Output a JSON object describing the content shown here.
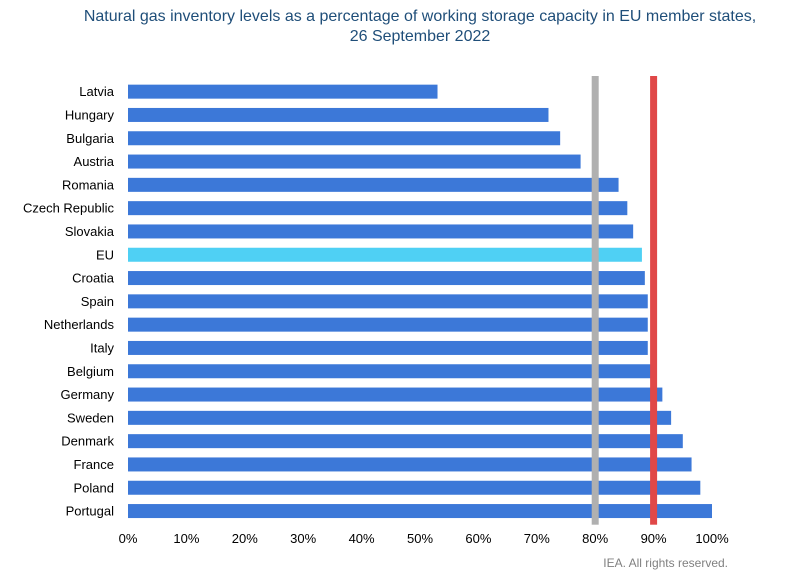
{
  "chart_data": {
    "type": "bar",
    "orientation": "horizontal",
    "title_lines": [
      "Natural gas inventory levels as a percentage of working storage capacity in EU member states,",
      "26 September 2022"
    ],
    "categories": [
      "Latvia",
      "Hungary",
      "Bulgaria",
      "Austria",
      "Romania",
      "Czech Republic",
      "Slovakia",
      "EU",
      "Croatia",
      "Spain",
      "Netherlands",
      "Italy",
      "Belgium",
      "Germany",
      "Sweden",
      "Denmark",
      "France",
      "Poland",
      "Portugal"
    ],
    "values": [
      53,
      72,
      74,
      77.5,
      84,
      85.5,
      86.5,
      88,
      88.5,
      89,
      89,
      89,
      90.5,
      91.5,
      93,
      95,
      96.5,
      98,
      100
    ],
    "highlight_category": "EU",
    "colors": {
      "bar": "#3c78d8",
      "highlight": "#4fd0f4",
      "ref80": "#b0b0b0",
      "ref90": "#e04848"
    },
    "reference_lines": [
      {
        "value": 80,
        "color": "#b0b0b0"
      },
      {
        "value": 90,
        "color": "#e04848"
      }
    ],
    "xlim": [
      0,
      100
    ],
    "x_ticks": [
      0,
      10,
      20,
      30,
      40,
      50,
      60,
      70,
      80,
      90,
      100
    ],
    "x_tick_labels": [
      "0%",
      "10%",
      "20%",
      "30%",
      "40%",
      "50%",
      "60%",
      "70%",
      "80%",
      "90%",
      "100%"
    ],
    "xlabel": "",
    "ylabel": "",
    "grid": false
  },
  "credit": "IEA. All rights reserved."
}
